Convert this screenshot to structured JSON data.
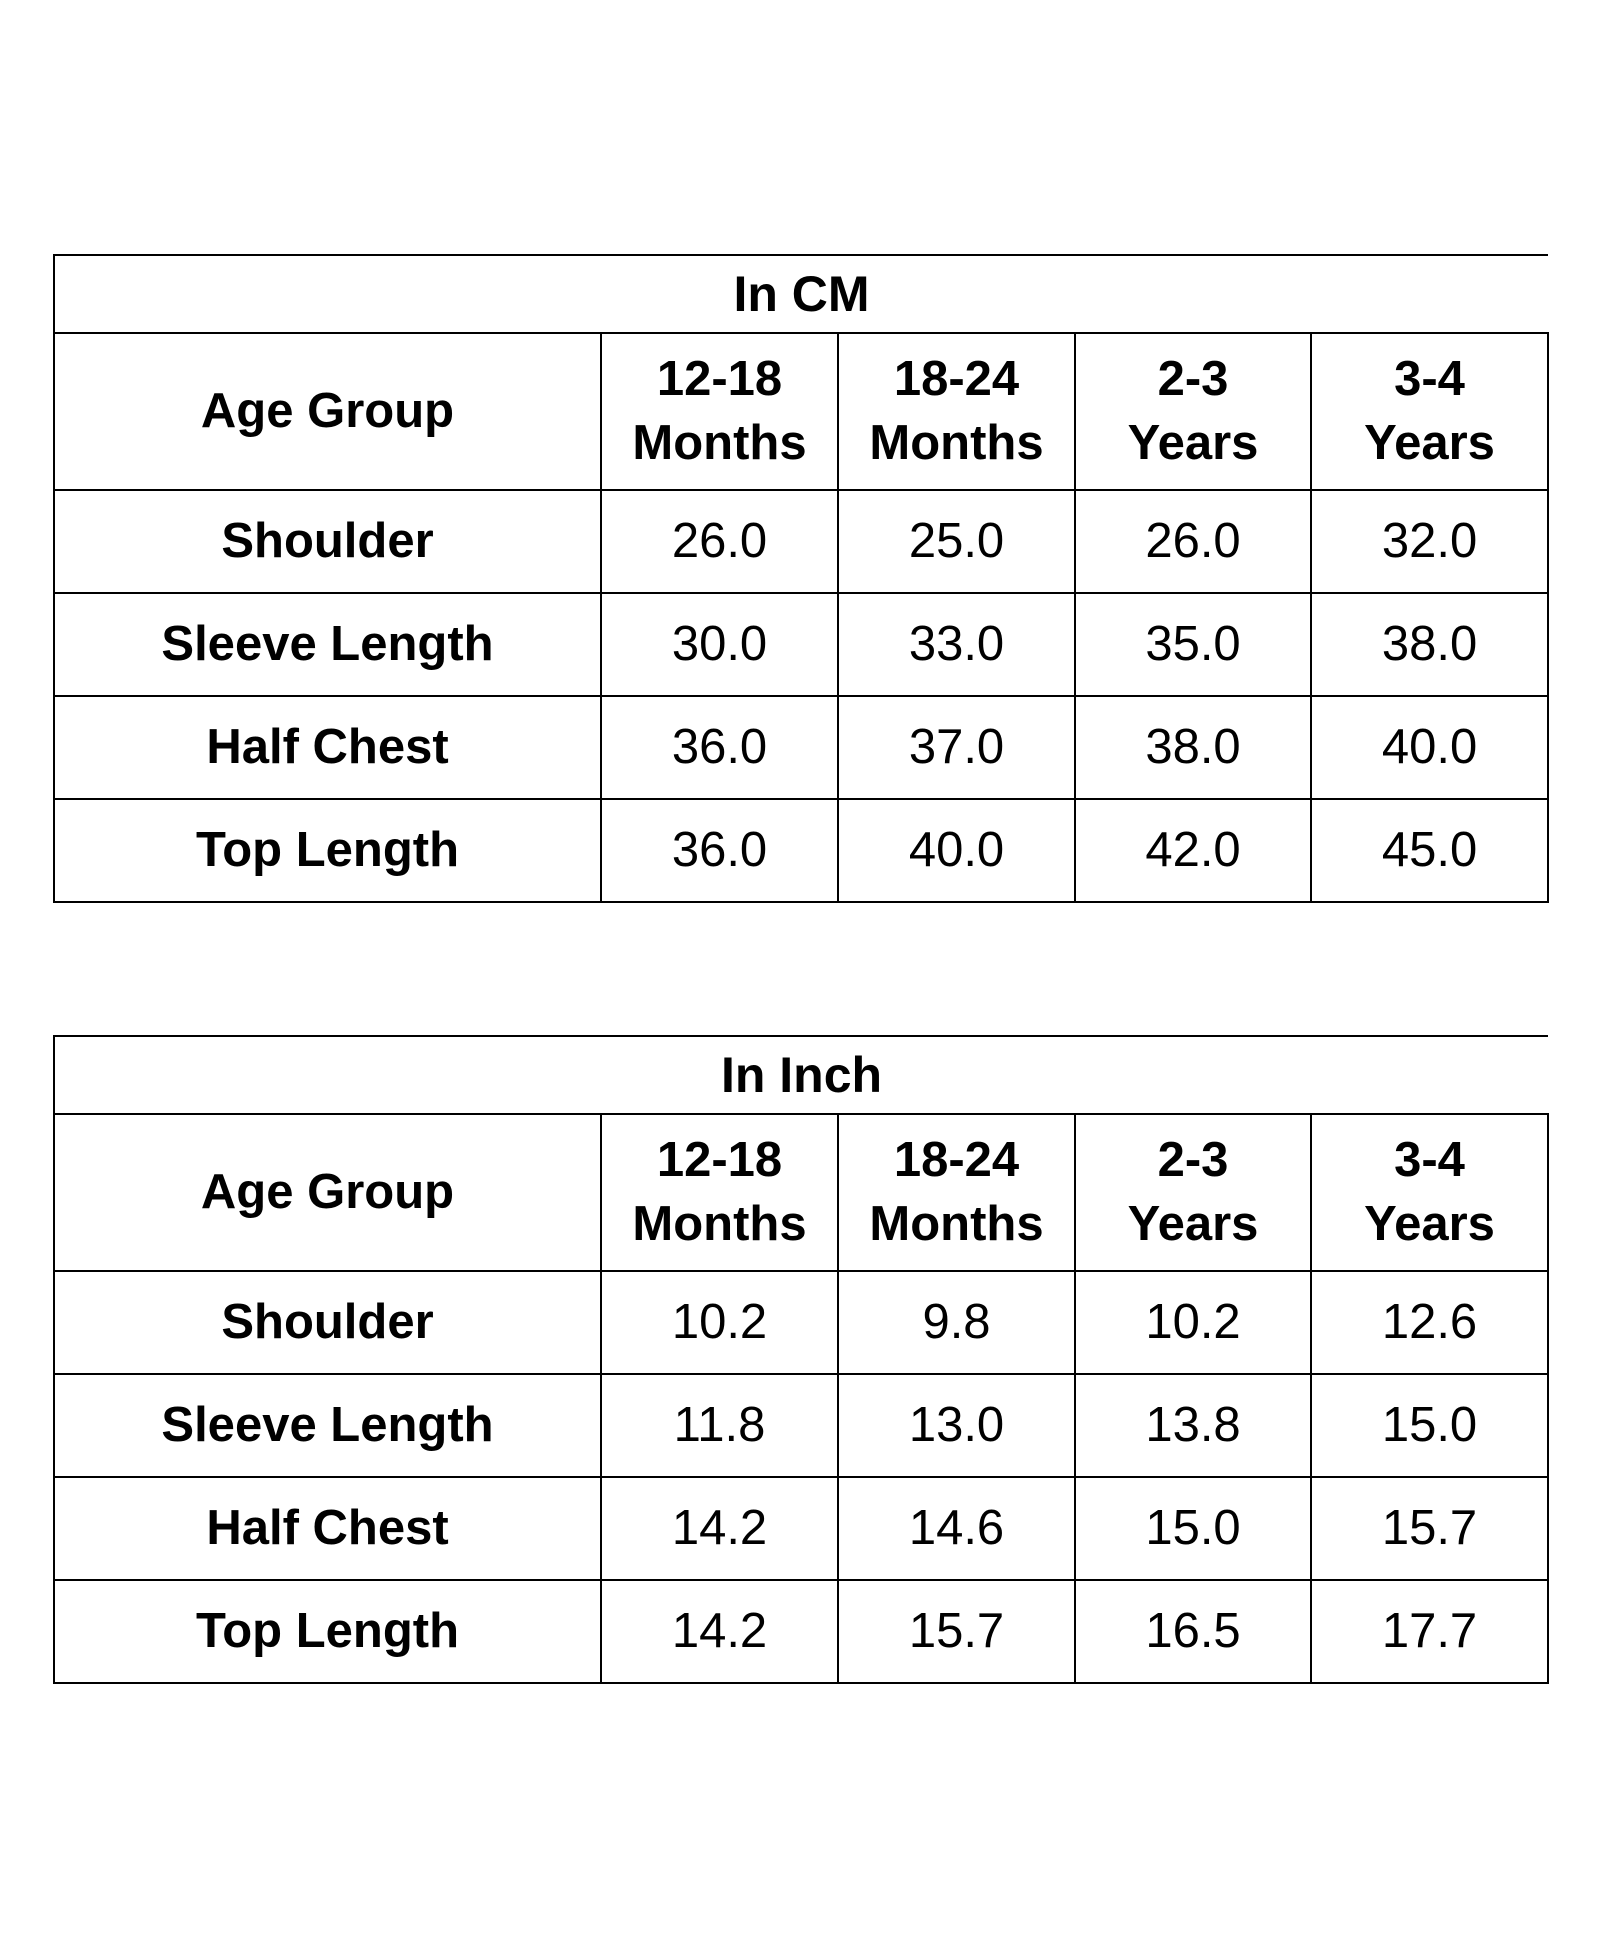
{
  "tables": [
    {
      "title": "In CM",
      "header_label": "Age Group",
      "columns": [
        {
          "line1": "12-18",
          "line2": "Months"
        },
        {
          "line1": "18-24",
          "line2": "Months"
        },
        {
          "line1": "2-3",
          "line2": "Years"
        },
        {
          "line1": "3-4",
          "line2": "Years"
        }
      ],
      "rows": [
        {
          "label": "Shoulder",
          "values": [
            "26.0",
            "25.0",
            "26.0",
            "32.0"
          ]
        },
        {
          "label": "Sleeve Length",
          "values": [
            "30.0",
            "33.0",
            "35.0",
            "38.0"
          ]
        },
        {
          "label": "Half Chest",
          "values": [
            "36.0",
            "37.0",
            "38.0",
            "40.0"
          ]
        },
        {
          "label": "Top Length",
          "values": [
            "36.0",
            "40.0",
            "42.0",
            "45.0"
          ]
        }
      ]
    },
    {
      "title": "In Inch",
      "header_label": "Age Group",
      "columns": [
        {
          "line1": "12-18",
          "line2": "Months"
        },
        {
          "line1": "18-24",
          "line2": "Months"
        },
        {
          "line1": "2-3",
          "line2": "Years"
        },
        {
          "line1": "3-4",
          "line2": "Years"
        }
      ],
      "rows": [
        {
          "label": "Shoulder",
          "values": [
            "10.2",
            "9.8",
            "10.2",
            "12.6"
          ]
        },
        {
          "label": "Sleeve Length",
          "values": [
            "11.8",
            "13.0",
            "13.8",
            "15.0"
          ]
        },
        {
          "label": "Half Chest",
          "values": [
            "14.2",
            "14.6",
            "15.0",
            "15.7"
          ]
        },
        {
          "label": "Top Length",
          "values": [
            "14.2",
            "15.7",
            "16.5",
            "17.7"
          ]
        }
      ]
    }
  ]
}
